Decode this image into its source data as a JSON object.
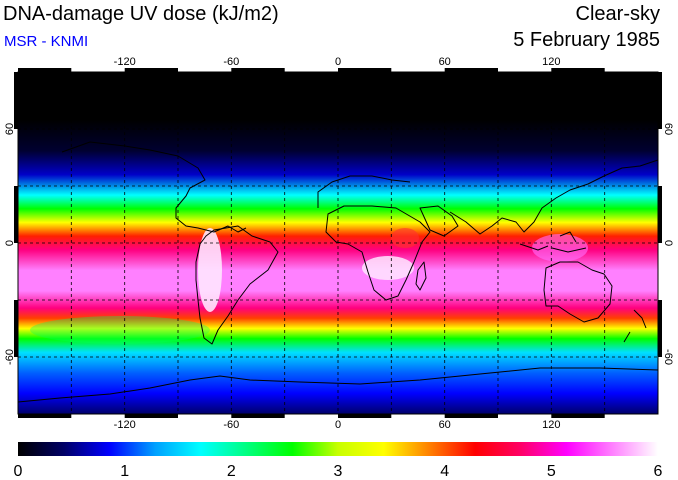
{
  "header": {
    "title": "DNA-damage UV dose (kJ/m2)",
    "subtitle": "MSR - KNMI",
    "condition": "Clear-sky",
    "date": "5 February 1985"
  },
  "map": {
    "longitude_ticks": [
      "-120",
      "-60",
      "0",
      "60",
      "120"
    ],
    "latitude_ticks": [
      "60",
      "0",
      "-60"
    ]
  },
  "colorbar": {
    "unit": "kJ/m2",
    "min": 0,
    "max": 6,
    "labels": [
      "0",
      "1",
      "2",
      "3",
      "4",
      "5",
      "6"
    ],
    "colors": [
      "#000000",
      "#000066",
      "#0000ff",
      "#00a0ff",
      "#00ffff",
      "#00ff80",
      "#00ff00",
      "#c8ff00",
      "#ffff00",
      "#ff8000",
      "#ff0000",
      "#ff0066",
      "#ff00ff",
      "#ff80ff",
      "#ffffff"
    ]
  }
}
